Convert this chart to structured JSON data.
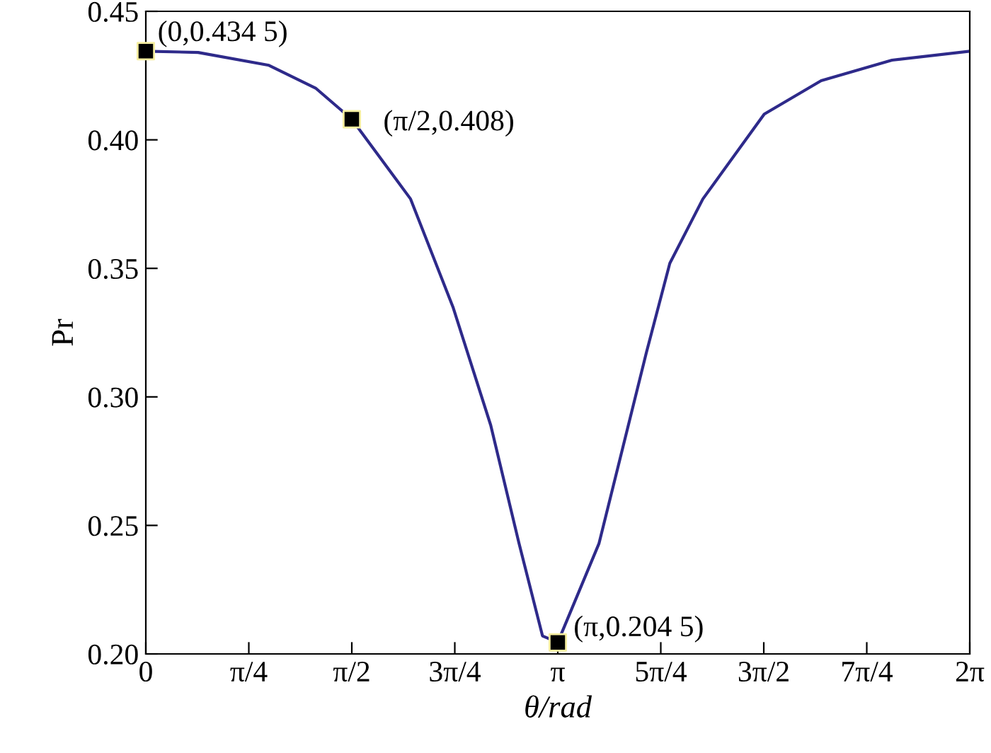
{
  "chart_data": {
    "type": "line",
    "xlabel": "θ/rad",
    "ylabel": "Pr",
    "xlim": [
      0,
      6.2832
    ],
    "ylim": [
      0.2,
      0.45
    ],
    "xticks": [
      {
        "value": 0,
        "label": "0"
      },
      {
        "value": 0.7854,
        "label": "π/4"
      },
      {
        "value": 1.5708,
        "label": "π/2"
      },
      {
        "value": 2.3562,
        "label": "3π/4"
      },
      {
        "value": 3.1416,
        "label": "π"
      },
      {
        "value": 3.927,
        "label": "5π/4"
      },
      {
        "value": 4.7124,
        "label": "3π/2"
      },
      {
        "value": 5.4978,
        "label": "7π/4"
      },
      {
        "value": 6.2832,
        "label": "2π"
      }
    ],
    "yticks": [
      {
        "value": 0.2,
        "label": "0.20"
      },
      {
        "value": 0.25,
        "label": "0.25"
      },
      {
        "value": 0.3,
        "label": "0.30"
      },
      {
        "value": 0.35,
        "label": "0.35"
      },
      {
        "value": 0.4,
        "label": "0.40"
      },
      {
        "value": 0.45,
        "label": "0.45"
      }
    ],
    "grid": false,
    "legend": false,
    "series": [
      {
        "color": "#2e2a8a",
        "marker": "none",
        "x": [
          0,
          0.399,
          0.939,
          1.298,
          1.5708,
          2.019,
          2.342,
          2.63,
          2.846,
          3.025,
          3.1416,
          3.456,
          3.636,
          3.816,
          3.996,
          4.248,
          4.716,
          5.15,
          5.69,
          6.2832
        ],
        "values": [
          0.4345,
          0.434,
          0.429,
          0.42,
          0.408,
          0.377,
          0.335,
          0.289,
          0.243,
          0.207,
          0.2045,
          0.243,
          0.28,
          0.317,
          0.352,
          0.377,
          0.41,
          0.423,
          0.431,
          0.4345
        ]
      },
      {
        "type": "scatter",
        "color": "#000000",
        "marker": "square",
        "x": [
          0,
          1.5708,
          3.1416
        ],
        "values": [
          0.4345,
          0.408,
          0.2045
        ]
      }
    ],
    "annotations": [
      {
        "text": "(0,0.434 5)",
        "x": 0,
        "y": 0.4345
      },
      {
        "text": "(π/2,0.408)",
        "x": 1.5708,
        "y": 0.408
      },
      {
        "text": "(π,0.204 5)",
        "x": 3.1416,
        "y": 0.2045
      }
    ]
  }
}
